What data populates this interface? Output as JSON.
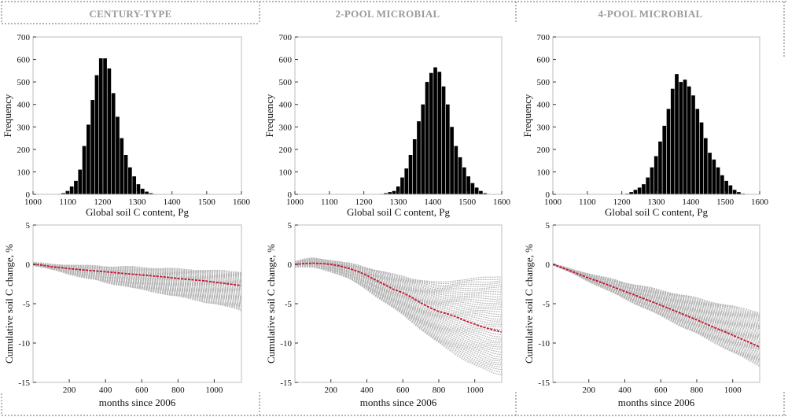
{
  "chart_data": [
    {
      "type": "bar",
      "column_title": "CENTURY-TYPE",
      "xlabel": "Global soil C content, Pg",
      "ylabel": "Frequency",
      "xlim": [
        1000,
        1600
      ],
      "ylim": [
        0,
        700
      ],
      "xticks": [
        1000,
        1100,
        1200,
        1300,
        1400,
        1500,
        1600
      ],
      "yticks": [
        0,
        100,
        200,
        300,
        400,
        500,
        600,
        700
      ],
      "bin_width": 12,
      "bin_starts": [
        1070,
        1082,
        1094,
        1106,
        1118,
        1130,
        1142,
        1154,
        1166,
        1178,
        1190,
        1202,
        1214,
        1226,
        1238,
        1250,
        1262,
        1274,
        1286,
        1298,
        1310,
        1322,
        1334,
        1346,
        1358
      ],
      "values": [
        2,
        5,
        15,
        35,
        60,
        110,
        215,
        310,
        420,
        530,
        605,
        605,
        560,
        450,
        345,
        250,
        175,
        120,
        80,
        45,
        25,
        12,
        5,
        2,
        1
      ]
    },
    {
      "type": "bar",
      "column_title": "2-POOL MICROBIAL",
      "xlabel": "Global soil C content, Pg",
      "ylabel": "Frequency",
      "xlim": [
        1000,
        1600
      ],
      "ylim": [
        0,
        700
      ],
      "xticks": [
        1000,
        1100,
        1200,
        1300,
        1400,
        1500,
        1600
      ],
      "yticks": [
        0,
        100,
        200,
        300,
        400,
        500,
        600,
        700
      ],
      "bin_width": 12,
      "bin_starts": [
        1246,
        1258,
        1270,
        1282,
        1294,
        1306,
        1318,
        1330,
        1342,
        1354,
        1366,
        1378,
        1390,
        1402,
        1414,
        1426,
        1438,
        1450,
        1462,
        1474,
        1486,
        1498,
        1510,
        1522,
        1534,
        1546
      ],
      "values": [
        2,
        5,
        10,
        15,
        35,
        75,
        115,
        175,
        245,
        325,
        400,
        500,
        540,
        565,
        545,
        480,
        400,
        300,
        215,
        165,
        120,
        80,
        50,
        30,
        15,
        5
      ]
    },
    {
      "type": "bar",
      "column_title": "4-POOL MICROBIAL",
      "xlabel": "Global soil C content, Pg",
      "ylabel": "Frequency",
      "xlim": [
        1000,
        1600
      ],
      "ylim": [
        0,
        700
      ],
      "xticks": [
        1000,
        1100,
        1200,
        1300,
        1400,
        1500,
        1600
      ],
      "yticks": [
        0,
        100,
        200,
        300,
        400,
        500,
        600,
        700
      ],
      "bin_width": 12,
      "bin_starts": [
        1210,
        1222,
        1234,
        1246,
        1258,
        1270,
        1282,
        1294,
        1306,
        1318,
        1330,
        1342,
        1354,
        1366,
        1378,
        1390,
        1402,
        1414,
        1426,
        1438,
        1450,
        1462,
        1474,
        1486,
        1498,
        1510,
        1522,
        1534,
        1546
      ],
      "values": [
        3,
        10,
        20,
        30,
        45,
        75,
        120,
        170,
        235,
        305,
        380,
        470,
        535,
        500,
        510,
        480,
        440,
        380,
        320,
        250,
        185,
        155,
        120,
        85,
        60,
        40,
        20,
        10,
        3
      ]
    },
    {
      "type": "line",
      "column_title": "CENTURY-TYPE",
      "xlabel": "months since 2006",
      "ylabel": "Cumulative soil C change, %",
      "xlim": [
        0,
        1150
      ],
      "ylim": [
        -15,
        5
      ],
      "xticks": [
        200,
        400,
        600,
        800,
        1000
      ],
      "yticks": [
        -15,
        -10,
        -5,
        0,
        5
      ],
      "mean_series": {
        "x": [
          0,
          50,
          100,
          150,
          200,
          250,
          300,
          350,
          400,
          450,
          500,
          550,
          600,
          650,
          700,
          750,
          800,
          850,
          900,
          950,
          1000,
          1050,
          1100,
          1150
        ],
        "y": [
          0,
          -0.1,
          -0.3,
          -0.4,
          -0.55,
          -0.65,
          -0.75,
          -0.85,
          -0.95,
          -1.05,
          -1.15,
          -1.25,
          -1.35,
          -1.45,
          -1.55,
          -1.65,
          -1.8,
          -1.9,
          -2.0,
          -2.1,
          -2.25,
          -2.4,
          -2.55,
          -2.7
        ]
      },
      "ensemble_band": {
        "x": [
          0,
          50,
          100,
          150,
          200,
          250,
          300,
          350,
          400,
          450,
          500,
          550,
          600,
          650,
          700,
          750,
          800,
          850,
          900,
          950,
          1000,
          1050,
          1100,
          1150
        ],
        "upper": [
          0.2,
          0.1,
          0.0,
          -0.05,
          -0.1,
          -0.15,
          -0.2,
          -0.2,
          -0.25,
          -0.3,
          -0.3,
          -0.35,
          -0.4,
          -0.45,
          -0.5,
          -0.55,
          -0.6,
          -0.65,
          -0.7,
          -0.75,
          -0.8,
          -0.85,
          -0.9,
          -0.95
        ],
        "lower": [
          -0.1,
          -0.3,
          -0.6,
          -0.9,
          -1.2,
          -1.5,
          -1.8,
          -2.0,
          -2.3,
          -2.5,
          -2.7,
          -3.0,
          -3.2,
          -3.4,
          -3.6,
          -3.9,
          -4.1,
          -4.3,
          -4.5,
          -4.8,
          -5.0,
          -5.3,
          -5.5,
          -5.8
        ]
      }
    },
    {
      "type": "line",
      "column_title": "2-POOL MICROBIAL",
      "xlabel": "months since 2006",
      "ylabel": "Cumulative soil C change, %",
      "xlim": [
        0,
        1150
      ],
      "ylim": [
        -15,
        5
      ],
      "xticks": [
        200,
        400,
        600,
        800,
        1000
      ],
      "yticks": [
        -15,
        -10,
        -5,
        0,
        5
      ],
      "mean_series": {
        "x": [
          0,
          50,
          100,
          150,
          200,
          250,
          300,
          350,
          400,
          450,
          500,
          550,
          600,
          650,
          700,
          750,
          800,
          850,
          900,
          950,
          1000,
          1050,
          1100,
          1150
        ],
        "y": [
          0,
          0.1,
          0.15,
          0.1,
          0,
          -0.2,
          -0.5,
          -0.9,
          -1.4,
          -2.0,
          -2.6,
          -3.2,
          -3.6,
          -4.2,
          -4.9,
          -5.5,
          -6.0,
          -6.3,
          -6.7,
          -7.2,
          -7.6,
          -8.0,
          -8.3,
          -8.6
        ]
      },
      "ensemble_band": {
        "x": [
          0,
          50,
          100,
          150,
          200,
          250,
          300,
          350,
          400,
          450,
          500,
          550,
          600,
          650,
          700,
          750,
          800,
          850,
          900,
          950,
          1000,
          1050,
          1100,
          1150
        ],
        "upper": [
          0.3,
          0.6,
          0.8,
          0.7,
          0.5,
          0.3,
          0.1,
          -0.1,
          -0.4,
          -0.7,
          -1.0,
          -1.3,
          -1.5,
          -1.8,
          -2.0,
          -2.2,
          -2.3,
          -2.2,
          -2.0,
          -1.9,
          -1.8,
          -1.7,
          -1.6,
          -1.5
        ],
        "lower": [
          -0.3,
          -0.3,
          -0.4,
          -0.6,
          -0.9,
          -1.3,
          -1.8,
          -2.5,
          -3.2,
          -4.0,
          -4.8,
          -5.6,
          -6.4,
          -7.3,
          -8.2,
          -9.1,
          -10.0,
          -10.8,
          -11.5,
          -12.2,
          -12.8,
          -13.3,
          -13.8,
          -14.0
        ]
      }
    },
    {
      "type": "line",
      "column_title": "4-POOL MICROBIAL",
      "xlabel": "months since 2006",
      "ylabel": "Cumulative soil C change, %",
      "xlim": [
        0,
        1150
      ],
      "ylim": [
        -15,
        5
      ],
      "xticks": [
        200,
        400,
        600,
        800,
        1000
      ],
      "yticks": [
        -15,
        -10,
        -5,
        0,
        5
      ],
      "mean_series": {
        "x": [
          0,
          50,
          100,
          150,
          200,
          250,
          300,
          350,
          400,
          450,
          500,
          550,
          600,
          650,
          700,
          750,
          800,
          850,
          900,
          950,
          1000,
          1050,
          1100,
          1150
        ],
        "y": [
          0,
          -0.4,
          -0.85,
          -1.3,
          -1.75,
          -2.15,
          -2.55,
          -3.0,
          -3.45,
          -3.85,
          -4.3,
          -4.75,
          -5.2,
          -5.65,
          -6.1,
          -6.6,
          -7.05,
          -7.55,
          -8.05,
          -8.5,
          -9.0,
          -9.5,
          -10.0,
          -10.5
        ]
      },
      "ensemble_band": {
        "x": [
          0,
          50,
          100,
          150,
          200,
          250,
          300,
          350,
          400,
          450,
          500,
          550,
          600,
          650,
          700,
          750,
          800,
          850,
          900,
          950,
          1000,
          1050,
          1100,
          1150
        ],
        "upper": [
          0,
          -0.3,
          -0.6,
          -0.9,
          -1.2,
          -1.5,
          -1.75,
          -2.0,
          -2.3,
          -2.55,
          -2.8,
          -3.05,
          -3.3,
          -3.55,
          -3.8,
          -4.05,
          -4.3,
          -4.6,
          -4.85,
          -5.1,
          -5.35,
          -5.6,
          -5.85,
          -6.1
        ],
        "lower": [
          0,
          -0.5,
          -1.0,
          -1.6,
          -2.15,
          -2.7,
          -3.25,
          -3.8,
          -4.35,
          -4.9,
          -5.45,
          -6.0,
          -6.55,
          -7.1,
          -7.7,
          -8.25,
          -8.8,
          -9.4,
          -9.95,
          -10.55,
          -11.15,
          -11.75,
          -12.35,
          -12.9
        ]
      }
    }
  ],
  "colors": {
    "bar_fill": "#000000",
    "ensemble_gray": "#b4b4b4",
    "mean_red": "#c8102e",
    "title_gray": "#9b9b9b"
  }
}
